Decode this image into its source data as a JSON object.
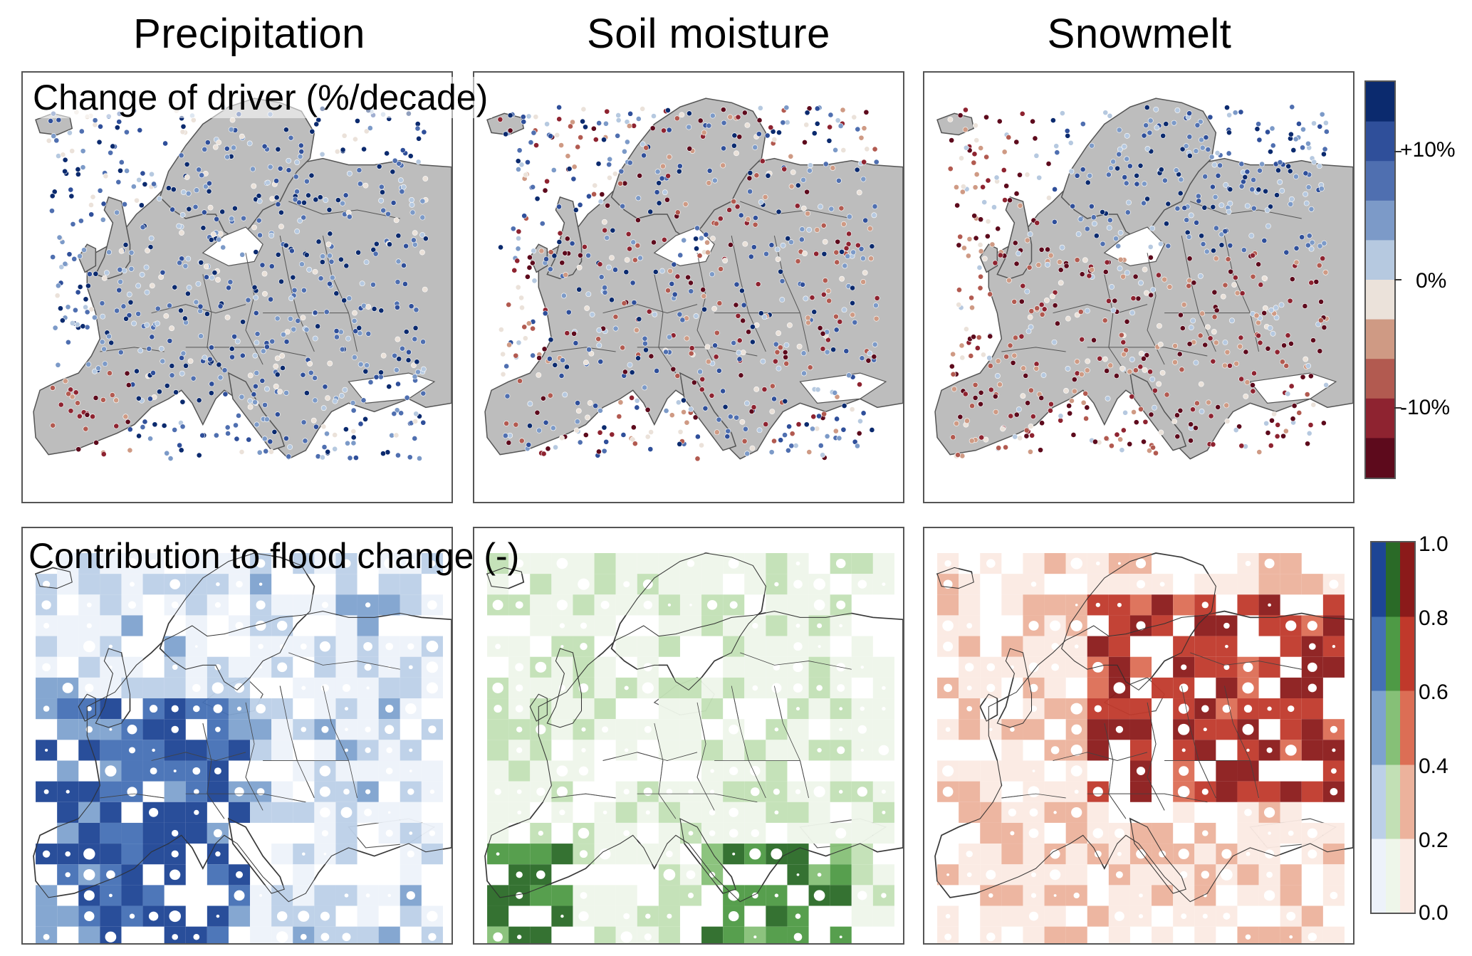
{
  "columns": [
    "Precipitation",
    "Soil moisture",
    "Snowmelt"
  ],
  "rows": {
    "top_label": "Change of driver (%/decade)",
    "bottom_label": "Contribution to flood change (-)"
  },
  "legend_top": {
    "ticks": [
      "+10%",
      "0%",
      "-10%"
    ],
    "colors": [
      "#0b2a6e",
      "#2f4f9a",
      "#4f6fb0",
      "#7c9ac8",
      "#b6c9e0",
      "#ebe2da",
      "#cf9a84",
      "#b25a50",
      "#8e2330",
      "#5d0a1c"
    ]
  },
  "legend_bottom": {
    "ticks": [
      "1.0",
      "0.8",
      "0.6",
      "0.4",
      "0.2",
      "0.0"
    ],
    "blue": [
      "#edf2fa",
      "#bcd0e8",
      "#7ea2cf",
      "#4470b5",
      "#1d4595"
    ],
    "green": [
      "#eef6ea",
      "#c2e0b5",
      "#86c077",
      "#4e9a45",
      "#2a6a27"
    ],
    "red": [
      "#fbeae3",
      "#ecb29c",
      "#dc6e55",
      "#c0392b",
      "#8b1a1a"
    ]
  },
  "map_colors": {
    "land_top": "#bdbdbd",
    "sea": "#ffffff",
    "border": "#555555"
  }
}
